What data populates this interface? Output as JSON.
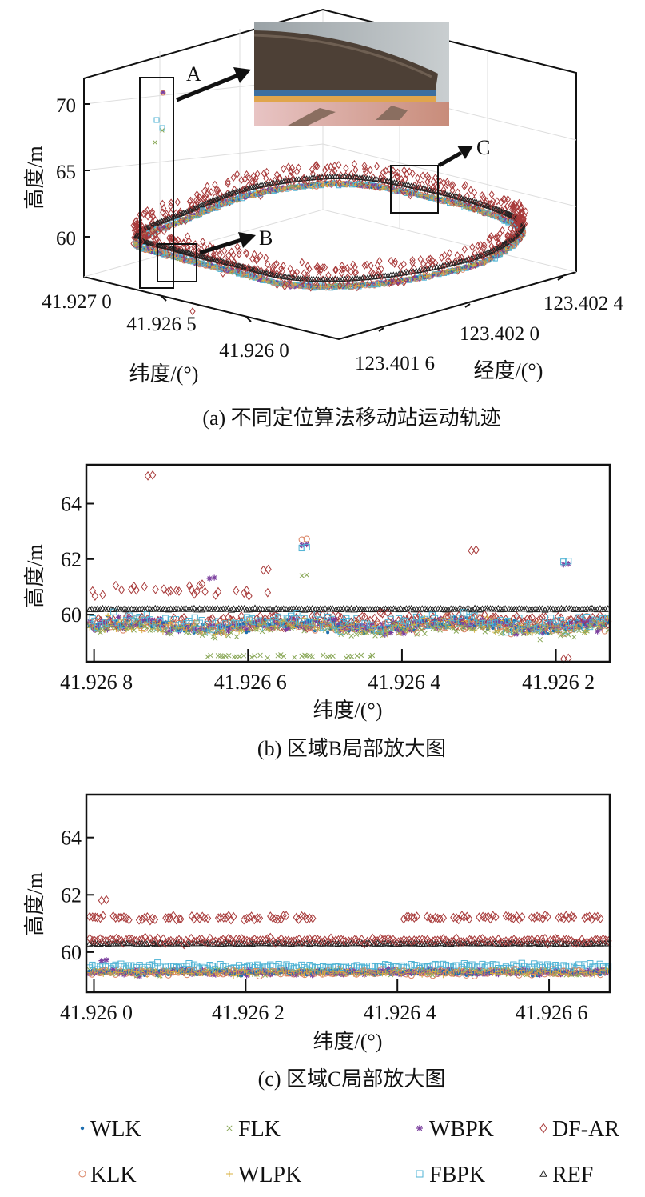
{
  "legend": [
    {
      "name": "WLK",
      "marker": "dot",
      "color": "#1f6fb0"
    },
    {
      "name": "FLK",
      "marker": "x",
      "color": "#8aa858"
    },
    {
      "name": "WBPK",
      "marker": "asterisk",
      "color": "#7b3f9e"
    },
    {
      "name": "DF-AR",
      "marker": "diamond",
      "color": "#a83a3a"
    },
    {
      "name": "KLK",
      "marker": "circle",
      "color": "#d98060"
    },
    {
      "name": "WLPK",
      "marker": "plus",
      "color": "#d9b040"
    },
    {
      "name": "FBPK",
      "marker": "square",
      "color": "#4fb3d4"
    },
    {
      "name": "REF",
      "marker": "triangle",
      "color": "#222222"
    }
  ],
  "chart_data": [
    {
      "type": "scatter",
      "subtype": "3d",
      "caption": "(a) 不同定位算法移动站运动轨迹",
      "xlabel": "纬度/(°)",
      "ylabel": "经度/(°)",
      "zlabel": "高度/m",
      "xticks": [
        "41.927 0",
        "41.926 5",
        "41.926 0"
      ],
      "yticks": [
        "123.401 6",
        "123.402 0",
        "123.402 4"
      ],
      "zticks": [
        "60",
        "65",
        "70"
      ],
      "annotations": [
        "A",
        "B",
        "C"
      ],
      "photo": "stadium-grandstand",
      "grid": true
    },
    {
      "type": "scatter",
      "caption": "(b) 区域B局部放大图",
      "xlabel": "纬度/(°)",
      "ylabel": "高度/m",
      "xticks": [
        "41.926 8",
        "41.926 6",
        "41.926 4",
        "41.926 2"
      ],
      "xtick_values": [
        41.9268,
        41.9266,
        41.9264,
        41.9262
      ],
      "yticks": [
        "60",
        "62",
        "64"
      ],
      "ytick_values": [
        60,
        62,
        64
      ],
      "xlim": [
        41.92681,
        41.92613
      ],
      "x_reversed": true,
      "ylim": [
        58.3,
        65.4
      ],
      "series": [
        {
          "name": "REF",
          "y_typical": 60.2
        },
        {
          "name": "DF-AR",
          "y_typical": 59.8,
          "y_typical_left_section": 60.9,
          "outliers": [
            [
              41.92673,
              65.0
            ],
            [
              41.92658,
              61.6
            ],
            [
              41.92631,
              62.3
            ],
            [
              41.92619,
              58.4
            ]
          ]
        },
        {
          "name": "KLK",
          "y_typical": 59.6,
          "outliers": [
            [
              41.92653,
              62.7
            ]
          ]
        },
        {
          "name": "WBPK",
          "y_typical": 59.6,
          "outliers": [
            [
              41.92665,
              61.3
            ],
            [
              41.92653,
              62.5
            ],
            [
              41.92619,
              61.8
            ]
          ]
        },
        {
          "name": "FBPK",
          "y_typical": 59.7,
          "outliers": [
            [
              41.92653,
              62.4
            ],
            [
              41.92619,
              61.9
            ]
          ]
        },
        {
          "name": "FLK",
          "y_typical": 59.5,
          "outliers": [
            [
              41.92653,
              61.4
            ]
          ],
          "low_band": 58.5
        },
        {
          "name": "WLK",
          "y_typical": 59.6
        },
        {
          "name": "WLPK",
          "y_typical": 59.6
        }
      ]
    },
    {
      "type": "scatter",
      "caption": "(c) 区域C局部放大图",
      "xlabel": "纬度/(°)",
      "ylabel": "高度/m",
      "xticks": [
        "41.926 0",
        "41.926 2",
        "41.926 4",
        "41.926 6"
      ],
      "xtick_values": [
        41.926,
        41.9262,
        41.9264,
        41.9266
      ],
      "yticks": [
        "60",
        "62",
        "64"
      ],
      "ytick_values": [
        60,
        62,
        64
      ],
      "xlim": [
        41.92599,
        41.92668
      ],
      "ylim": [
        58.6,
        65.5
      ],
      "series": [
        {
          "name": "REF",
          "y_typical": 60.3
        },
        {
          "name": "DF-AR",
          "y_typical": 61.2,
          "y_lower_band": 60.4,
          "outliers": [
            [
              41.92601,
              61.8
            ]
          ]
        },
        {
          "name": "FBPK",
          "y_typical": 59.5
        },
        {
          "name": "KLK",
          "y_typical": 59.3
        },
        {
          "name": "WBPK",
          "y_typical": 59.3,
          "outliers": [
            [
              41.92601,
              59.7
            ]
          ]
        },
        {
          "name": "FLK",
          "y_typical": 59.3
        },
        {
          "name": "WLK",
          "y_typical": 59.3
        },
        {
          "name": "WLPK",
          "y_typical": 59.3
        }
      ]
    }
  ]
}
